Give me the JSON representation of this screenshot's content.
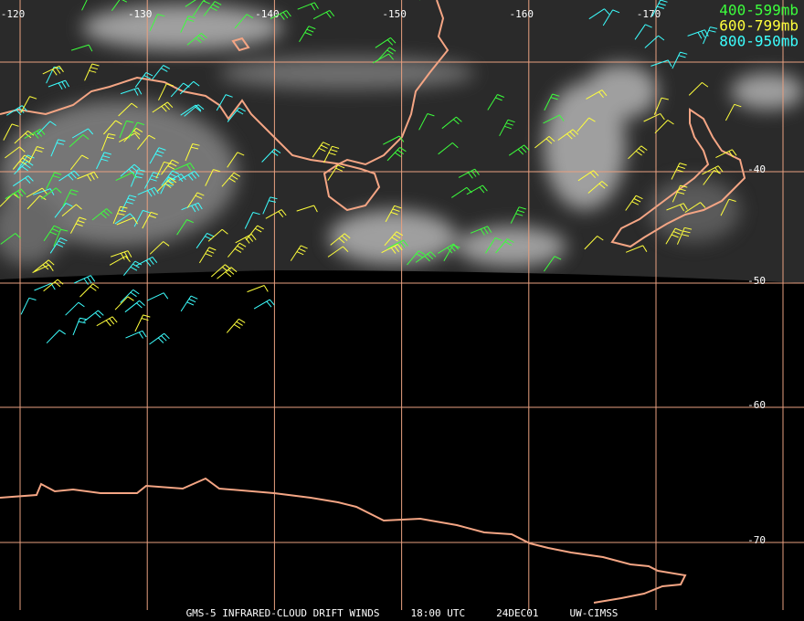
{
  "map": {
    "longitude_labels": [
      -120,
      -130,
      -140,
      -150,
      -160,
      -170
    ],
    "latitude_labels": [
      -40,
      -50,
      -60,
      -70
    ],
    "legend": [
      {
        "label": "400-599mb",
        "color": "#3cff3c"
      },
      {
        "label": "600-799mb",
        "color": "#ffff3c"
      },
      {
        "label": "800-950mb",
        "color": "#3cffff"
      }
    ],
    "footer": {
      "source": "GMS-5 INFRARED-CLOUD DRIFT WINDS",
      "time": "18:00 UTC",
      "date": "24DEC01",
      "credit": "UW-CIMSS"
    }
  }
}
